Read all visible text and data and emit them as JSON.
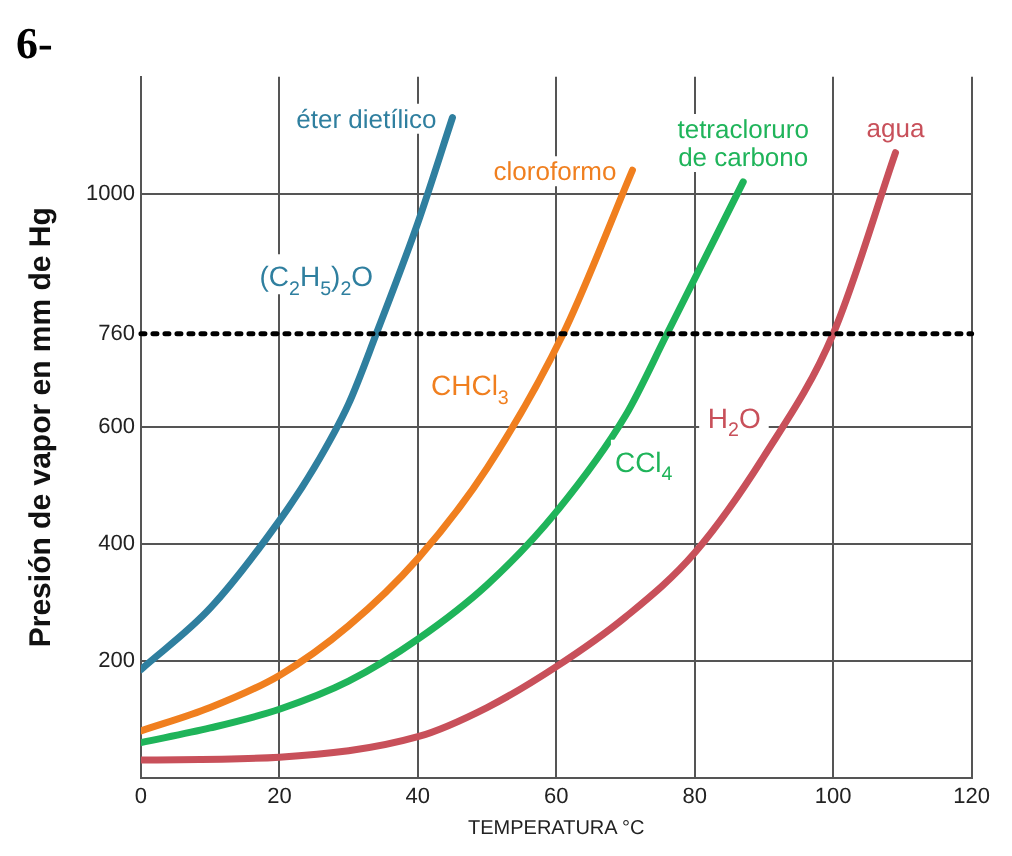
{
  "chart_data": {
    "type": "line",
    "title": "6-",
    "xlabel": "TEMPERATURA °C",
    "ylabel": "Presión de vapor en mm de Hg",
    "xlim": [
      0,
      120
    ],
    "xticks": [
      0,
      20,
      40,
      60,
      80,
      100,
      120
    ],
    "ylim": [
      0,
      1200
    ],
    "yticks": [
      200,
      400,
      600,
      760,
      1000
    ],
    "grid": true,
    "legend": false,
    "marker": "none",
    "line_style": "solid",
    "ref_lines": [
      {
        "axis": "y",
        "value": 760,
        "line_style": "dotted",
        "color": "#000000"
      }
    ],
    "annotations": [
      "(C$_{2}$H$_{5}$)$_{2}$O",
      "CHCl$_{3}$",
      "CCl$_{4}$",
      "H$_{2}$O"
    ],
    "series": [
      {
        "name": "éter dietílico",
        "color": "#2f7f9f",
        "x": [
          0,
          10,
          20,
          25,
          30,
          34,
          40,
          45
        ],
        "values": [
          185,
          290,
          440,
          530,
          640,
          760,
          950,
          1130
        ]
      },
      {
        "name": "cloroformo",
        "color": "#f07f1f",
        "x": [
          0,
          10,
          20,
          30,
          40,
          50,
          61,
          71
        ],
        "values": [
          80,
          120,
          175,
          260,
          375,
          530,
          760,
          1040
        ]
      },
      {
        "name": "tetracloruro de carbono",
        "color": "#1fb45a",
        "x": [
          0,
          10,
          20,
          30,
          40,
          50,
          60,
          70,
          76,
          87
        ],
        "values": [
          60,
          85,
          117,
          165,
          237,
          330,
          455,
          620,
          760,
          1020
        ]
      },
      {
        "name": "agua",
        "color": "#c8505a",
        "x": [
          0,
          20,
          40,
          50,
          60,
          70,
          80,
          90,
          100,
          109
        ],
        "values": [
          30,
          35,
          70,
          120,
          190,
          275,
          385,
          550,
          760,
          1070
        ]
      }
    ]
  }
}
